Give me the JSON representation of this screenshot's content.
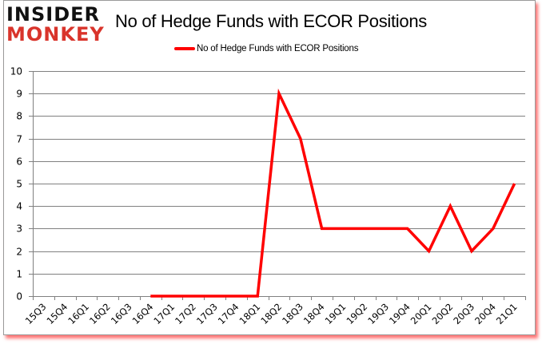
{
  "branding": {
    "logo_line1": "INSIDER",
    "logo_line2": "MONKEY"
  },
  "colors": {
    "series": "#ff0000",
    "gridline": "#808080",
    "logo_top": "#111111",
    "logo_bottom": "#d9342b"
  },
  "chart_data": {
    "type": "line",
    "title": "No of Hedge Funds with ECOR Positions",
    "xlabel": "",
    "ylabel": "",
    "ylim": [
      0,
      10
    ],
    "yticks": [
      0,
      1,
      2,
      3,
      4,
      5,
      6,
      7,
      8,
      9,
      10
    ],
    "grid": true,
    "legend_position": "top",
    "categories": [
      "15Q3",
      "15Q4",
      "16Q1",
      "16Q2",
      "16Q3",
      "16Q4",
      "17Q1",
      "17Q2",
      "17Q3",
      "17Q4",
      "18Q1",
      "18Q2",
      "18Q3",
      "18Q4",
      "19Q1",
      "19Q2",
      "19Q3",
      "19Q4",
      "20Q1",
      "20Q2",
      "20Q3",
      "20Q4",
      "21Q1"
    ],
    "series": [
      {
        "name": "No of Hedge Funds with ECOR Positions",
        "color": "#ff0000",
        "values": [
          null,
          null,
          null,
          null,
          null,
          0,
          0,
          0,
          0,
          0,
          0,
          9,
          7,
          3,
          3,
          3,
          3,
          3,
          2,
          4,
          2,
          3,
          5
        ]
      }
    ]
  }
}
